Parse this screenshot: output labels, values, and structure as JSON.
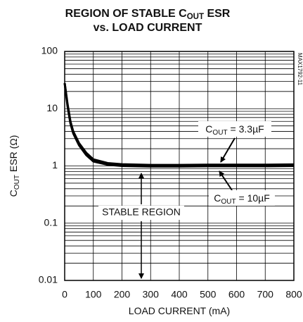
{
  "chart_data": {
    "type": "line",
    "title": [
      [
        "REGION OF STABLE C",
        "OUT",
        " ESR"
      ],
      [
        "vs. LOAD CURRENT"
      ]
    ],
    "figure_id": "MAX1792-11",
    "x_label": [
      [
        "LOAD CURRENT (mA)"
      ]
    ],
    "y_label": [
      [
        "C",
        "OUT",
        " ESR (Ω)"
      ]
    ],
    "x": [
      0,
      10,
      20,
      30,
      50,
      75,
      100,
      150,
      200,
      300,
      400,
      500,
      600,
      700,
      800
    ],
    "series": [
      {
        "name": [
          "C",
          "OUT",
          " = 3.3µF"
        ],
        "color": "#000000",
        "values": [
          28,
          12,
          6,
          4,
          2.5,
          1.7,
          1.3,
          1.12,
          1.07,
          1.04,
          1.04,
          1.05,
          1.05,
          1.05,
          1.06
        ]
      },
      {
        "name": [
          "C",
          "OUT",
          " = 10µF"
        ],
        "color": "#000000",
        "values": [
          28,
          11,
          5.5,
          3.7,
          2.3,
          1.55,
          1.2,
          1.05,
          1.0,
          0.98,
          0.98,
          0.99,
          0.99,
          0.99,
          1.0
        ]
      }
    ],
    "region_label": "STABLE REGION",
    "xlim": [
      0,
      800
    ],
    "xticks": [
      0,
      100,
      200,
      300,
      400,
      500,
      600,
      700,
      800
    ],
    "ylim": [
      0.01,
      100
    ],
    "yticks": [
      0.01,
      0.1,
      1,
      10,
      100
    ],
    "y_log": true,
    "grid": true
  }
}
